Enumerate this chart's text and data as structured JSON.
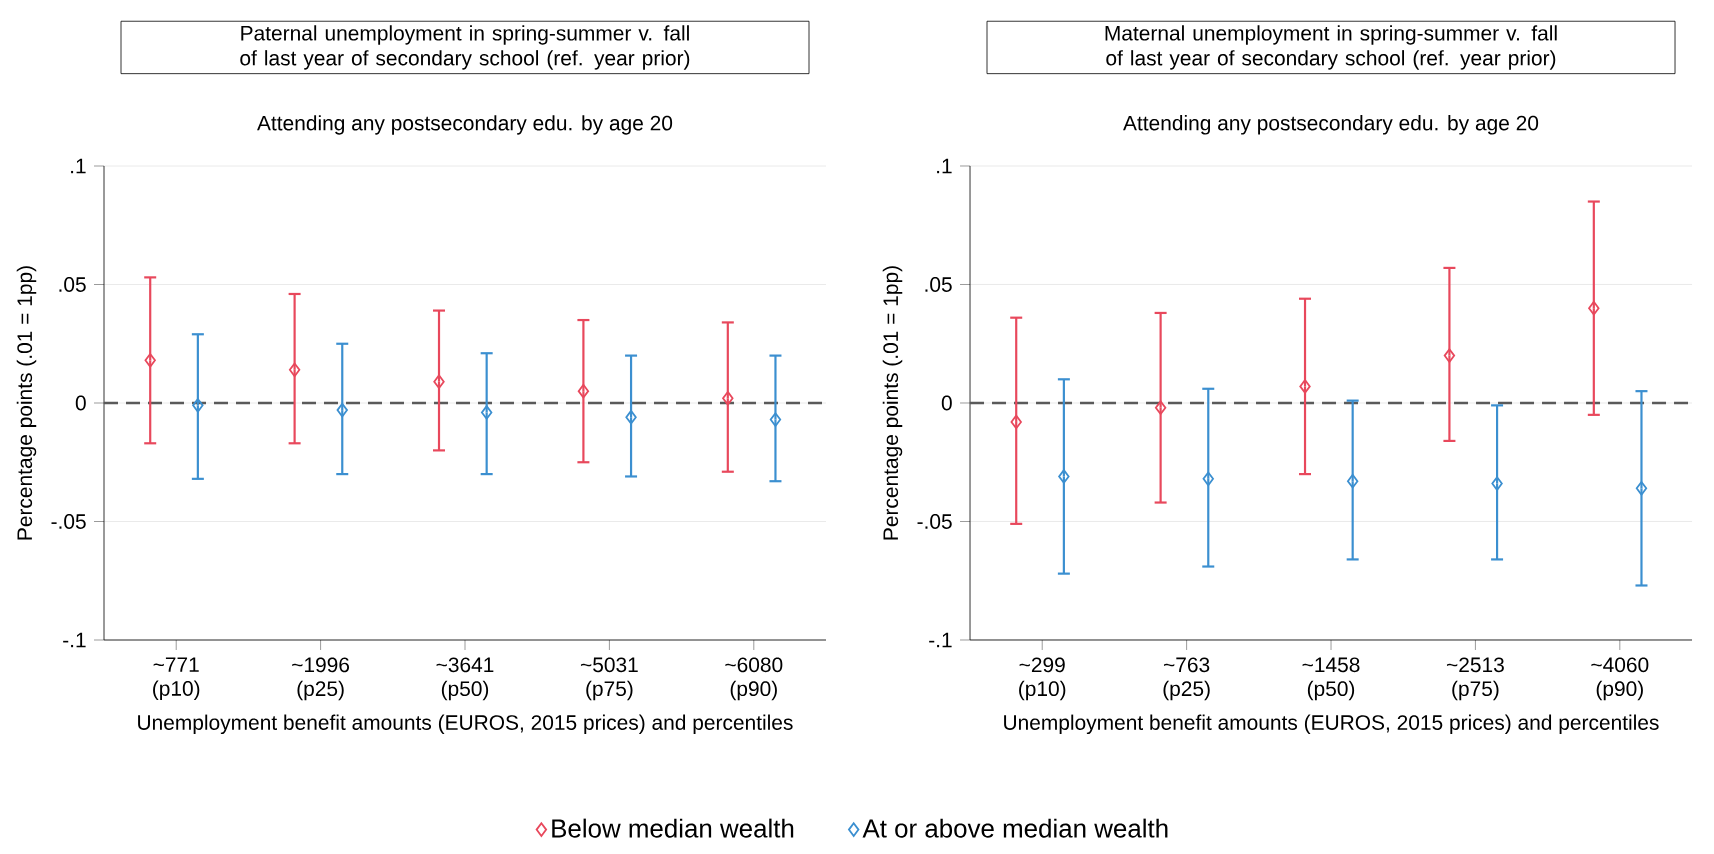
{
  "chart_data": [
    {
      "type": "scatter",
      "title": "Paternal unemployment in spring-summer v. fall of last year of secondary school (ref. year prior)",
      "subtitle": "Attending any postsecondary edu. by age 20",
      "xlabel": "Unemployment benefit amounts (EUROS, 2015 prices) and percentiles",
      "ylabel": "Percentage points (.01 = 1pp)",
      "categories": [
        "~771 (p10)",
        "~1996 (p25)",
        "~3641 (p50)",
        "~5031 (p75)",
        "~6080 (p90)"
      ],
      "series": [
        {
          "name": "Below median wealth",
          "color": "#e8485c",
          "values": [
            0.018,
            0.014,
            0.009,
            0.005,
            0.002
          ],
          "errors": [
            [
              -0.017,
              0.053
            ],
            [
              -0.017,
              0.046
            ],
            [
              -0.02,
              0.039
            ],
            [
              -0.025,
              0.035
            ],
            [
              -0.029,
              0.034
            ]
          ]
        },
        {
          "name": "At or above median wealth",
          "color": "#3b8fd0",
          "values": [
            -0.001,
            -0.003,
            -0.004,
            -0.006,
            -0.007
          ],
          "errors": [
            [
              -0.032,
              0.029
            ],
            [
              -0.03,
              0.025
            ],
            [
              -0.03,
              0.021
            ],
            [
              -0.031,
              0.02
            ],
            [
              -0.033,
              0.02
            ]
          ]
        }
      ],
      "ylim": [
        -0.1,
        0.1
      ],
      "yticks": [
        {
          "value": -0.1,
          "label": "-.1"
        },
        {
          "value": -0.05,
          "label": "-.05"
        },
        0,
        {
          "value": 0.05,
          "label": ".05"
        },
        {
          "value": 0.1,
          "label": ".1"
        }
      ],
      "ref_lines": [
        {
          "axis": "y",
          "value": 0,
          "color": "#5a5a5a",
          "line_style": "dashed"
        }
      ],
      "grid": "y",
      "marker": "diamond",
      "legend": "bottom"
    },
    {
      "type": "scatter",
      "title": "Maternal unemployment in spring-summer v. fall of last year of secondary school (ref. year prior)",
      "subtitle": "Attending any postsecondary edu. by age 20",
      "xlabel": "Unemployment benefit amounts (EUROS, 2015 prices) and percentiles",
      "ylabel": "Percentage points (.01 = 1pp)",
      "categories": [
        "~299 (p10)",
        "~763 (p25)",
        "~1458 (p50)",
        "~2513 (p75)",
        "~4060 (p90)"
      ],
      "series": [
        {
          "color": "#e8485c",
          "values": [
            -0.008,
            -0.002,
            0.007,
            0.02,
            0.04
          ],
          "errors": [
            [
              -0.051,
              0.036
            ],
            [
              -0.042,
              0.038
            ],
            [
              -0.03,
              0.044
            ],
            [
              -0.016,
              0.057
            ],
            [
              -0.005,
              0.085
            ]
          ]
        },
        {
          "color": "#3b8fd0",
          "values": [
            -0.031,
            -0.032,
            -0.033,
            -0.034,
            -0.036
          ],
          "errors": [
            [
              -0.072,
              0.01
            ],
            [
              -0.069,
              0.006
            ],
            [
              -0.066,
              0.001
            ],
            [
              -0.066,
              -0.001
            ],
            [
              -0.077,
              0.005
            ]
          ]
        }
      ],
      "ylim": [
        -0.1,
        0.1
      ],
      "yticks": [
        {
          "value": -0.1,
          "label": "-.1"
        },
        {
          "value": -0.05,
          "label": "-.05"
        },
        0,
        {
          "value": 0.05,
          "label": ".05"
        },
        {
          "value": 0.1,
          "label": ".1"
        }
      ],
      "ref_lines": [
        {
          "axis": "y",
          "value": 0,
          "color": "#5a5a5a",
          "line_style": "dashed"
        }
      ],
      "grid": "y",
      "marker": "diamond"
    }
  ]
}
